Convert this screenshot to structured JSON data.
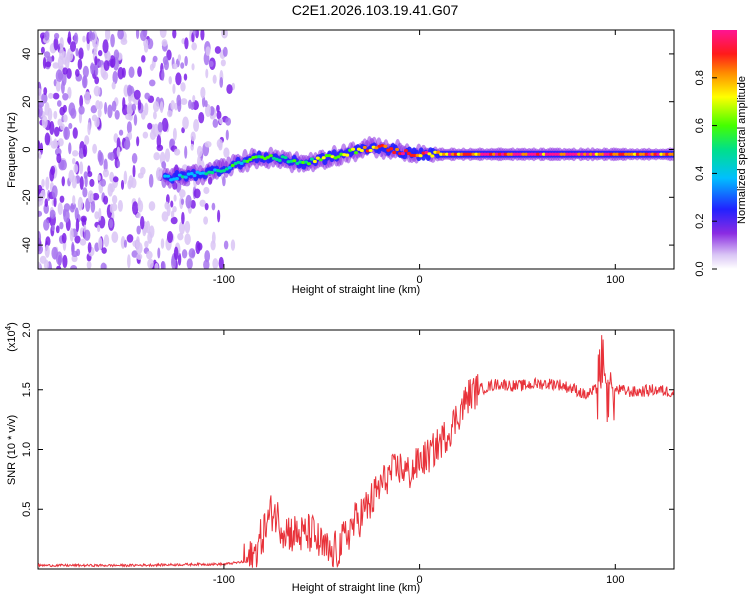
{
  "title": "C2E1.2026.103.19.41.G07",
  "chart_data": [
    {
      "type": "heatmap",
      "xlabel": "Height of straight line (km)",
      "ylabel": "Frequency (Hz)",
      "xlim": [
        -195,
        130
      ],
      "ylim": [
        -50,
        50
      ],
      "x_ticks": [
        -100,
        0,
        100
      ],
      "x_tick_labels": [
        "-100",
        "0",
        "100"
      ],
      "y_ticks": [
        -40,
        -20,
        0,
        20,
        40
      ],
      "y_tick_labels": [
        "-40",
        "-20",
        "0",
        "20",
        "40"
      ],
      "colorbar": {
        "label": "Normalized spectral amplitude",
        "range": [
          0,
          1
        ],
        "ticks": [
          0,
          0.2,
          0.4,
          0.6,
          0.8
        ],
        "tick_labels": [
          "0.0",
          "0.2",
          "0.4",
          "0.6",
          "0.8"
        ]
      },
      "ridge": {
        "x": [
          -130,
          -110,
          -100,
          -90,
          -80,
          -70,
          -60,
          -50,
          -40,
          -30,
          -20,
          -10,
          0,
          20,
          40,
          60,
          80,
          100,
          130
        ],
        "freq": [
          -12,
          -10,
          -8,
          -5,
          -3,
          -4,
          -6,
          -4,
          -2,
          0,
          1,
          -1,
          -2,
          -2,
          -2,
          -2,
          -2,
          -2,
          -2
        ],
        "amplitude": [
          0.35,
          0.4,
          0.45,
          0.5,
          0.55,
          0.5,
          0.55,
          0.6,
          0.65,
          0.75,
          0.85,
          0.9,
          0.85,
          0.85,
          0.9,
          0.95,
          0.95,
          0.95,
          0.9
        ]
      },
      "noise_region_x": [
        -195,
        -95
      ]
    },
    {
      "type": "line",
      "title": "",
      "xlabel": "Height of straight line (km)",
      "ylabel": "SNR (10 * v/v)",
      "y_scale_label": "(x10",
      "y_scale_exponent": "4",
      "xlim": [
        -195,
        130
      ],
      "ylim": [
        0,
        2.0
      ],
      "x_ticks": [
        -100,
        0,
        100
      ],
      "x_tick_labels": [
        "-100",
        "0",
        "100"
      ],
      "y_ticks": [
        0.5,
        1.0,
        1.5,
        2.0
      ],
      "y_tick_labels": [
        "0.5",
        "1.0",
        "1.5",
        "2.0"
      ],
      "series": [
        {
          "name": "SNR",
          "color": "#e8323a",
          "x": [
            -195,
            -150,
            -110,
            -100,
            -90,
            -85,
            -80,
            -75,
            -70,
            -65,
            -60,
            -55,
            -50,
            -45,
            -40,
            -35,
            -30,
            -25,
            -20,
            -15,
            -10,
            -5,
            0,
            5,
            10,
            15,
            20,
            25,
            30,
            40,
            50,
            60,
            70,
            80,
            85,
            90,
            95,
            100,
            110,
            120,
            130
          ],
          "y": [
            0.03,
            0.03,
            0.04,
            0.04,
            0.06,
            0.08,
            0.3,
            0.5,
            0.35,
            0.3,
            0.28,
            0.3,
            0.18,
            0.12,
            0.2,
            0.35,
            0.45,
            0.55,
            0.7,
            0.8,
            0.85,
            0.8,
            0.9,
            0.95,
            1.05,
            1.15,
            1.3,
            1.45,
            1.5,
            1.55,
            1.53,
            1.55,
            1.55,
            1.5,
            1.45,
            1.5,
            1.6,
            1.5,
            1.48,
            1.5,
            1.48
          ]
        }
      ]
    }
  ]
}
